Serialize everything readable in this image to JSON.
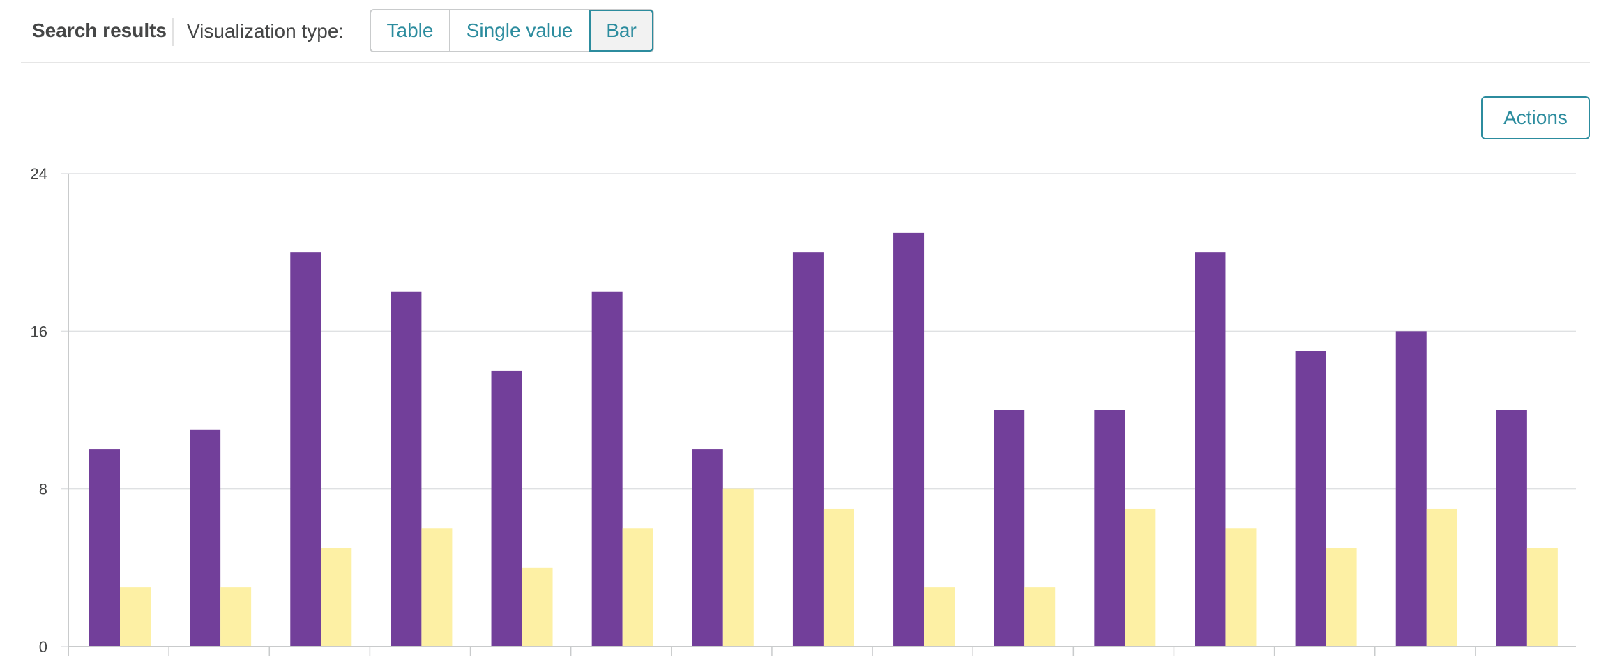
{
  "header": {
    "title": "Search results",
    "viz_label": "Visualization type:",
    "viz_options": [
      "Table",
      "Single value",
      "Bar"
    ],
    "active_option": "Bar"
  },
  "actions_label": "Actions",
  "colors": {
    "accent": "#2c8c9e",
    "series_1": "#723f9a",
    "series_2": "#fdf0a4"
  },
  "chart_data": {
    "type": "bar",
    "ylim": [
      0,
      24
    ],
    "yticks": [
      "0",
      "8",
      "16",
      "24"
    ],
    "grid": true,
    "categories": [
      "",
      "",
      "",
      "",
      "",
      "",
      "",
      "",
      "",
      "",
      "",
      "",
      "",
      "",
      ""
    ],
    "series": [
      {
        "values": [
          10,
          11,
          20,
          18,
          14,
          18,
          10,
          20,
          21,
          12,
          12,
          20,
          15,
          16,
          12
        ]
      },
      {
        "values": [
          3,
          3,
          5,
          6,
          4,
          6,
          8,
          7,
          3,
          3,
          7,
          6,
          5,
          7,
          5
        ]
      }
    ]
  }
}
